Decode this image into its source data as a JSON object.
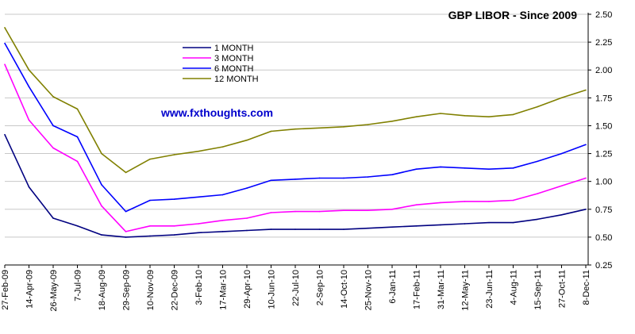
{
  "chart_data": {
    "type": "line",
    "title": "GBP LIBOR - Since 2009",
    "watermark": "www.fxthoughts.com",
    "xlabel": "",
    "ylabel": "",
    "ylim": [
      0.25,
      2.5
    ],
    "y_ticks": [
      "0.25",
      "0.50",
      "0.75",
      "1.00",
      "1.25",
      "1.50",
      "1.75",
      "2.00",
      "2.25",
      "2.50"
    ],
    "x_tick_labels": [
      "27-Feb-09",
      "14-Apr-09",
      "26-May-09",
      "7-Jul-09",
      "18-Aug-09",
      "29-Sep-09",
      "10-Nov-09",
      "22-Dec-09",
      "3-Feb-10",
      "17-Mar-10",
      "29-Apr-10",
      "10-Jun-10",
      "22-Jul-10",
      "2-Sep-10",
      "14-Oct-10",
      "25-Nov-10",
      "6-Jan-11",
      "17-Feb-11",
      "31-Mar-11",
      "12-May-11",
      "23-Jun-11",
      "4-Aug-11",
      "15-Sep-11",
      "27-Oct-11",
      "8-Dec-11"
    ],
    "grid": "horizontal",
    "y_axis_side": "right",
    "legend_placement": "top-left",
    "series": [
      {
        "name": "1 MONTH",
        "color": "#000080",
        "values": [
          1.42,
          0.95,
          0.67,
          0.6,
          0.52,
          0.5,
          0.51,
          0.52,
          0.54,
          0.55,
          0.56,
          0.57,
          0.57,
          0.57,
          0.57,
          0.58,
          0.59,
          0.6,
          0.61,
          0.62,
          0.63,
          0.63,
          0.66,
          0.7,
          0.75
        ]
      },
      {
        "name": "3 MONTH",
        "color": "#ff00ff",
        "values": [
          2.05,
          1.55,
          1.3,
          1.18,
          0.78,
          0.55,
          0.6,
          0.6,
          0.62,
          0.65,
          0.67,
          0.72,
          0.73,
          0.73,
          0.74,
          0.74,
          0.75,
          0.79,
          0.81,
          0.82,
          0.82,
          0.83,
          0.89,
          0.96,
          1.03
        ]
      },
      {
        "name": "6 MONTH",
        "color": "#0000ff",
        "values": [
          2.24,
          1.85,
          1.5,
          1.4,
          0.97,
          0.73,
          0.83,
          0.84,
          0.86,
          0.88,
          0.94,
          1.01,
          1.02,
          1.03,
          1.03,
          1.04,
          1.06,
          1.11,
          1.13,
          1.12,
          1.11,
          1.12,
          1.18,
          1.25,
          1.33
        ]
      },
      {
        "name": "12 MONTH",
        "color": "#808000",
        "values": [
          2.38,
          2.0,
          1.76,
          1.65,
          1.25,
          1.08,
          1.2,
          1.24,
          1.27,
          1.31,
          1.37,
          1.45,
          1.47,
          1.48,
          1.49,
          1.51,
          1.54,
          1.58,
          1.61,
          1.59,
          1.58,
          1.6,
          1.67,
          1.75,
          1.82
        ]
      }
    ]
  }
}
